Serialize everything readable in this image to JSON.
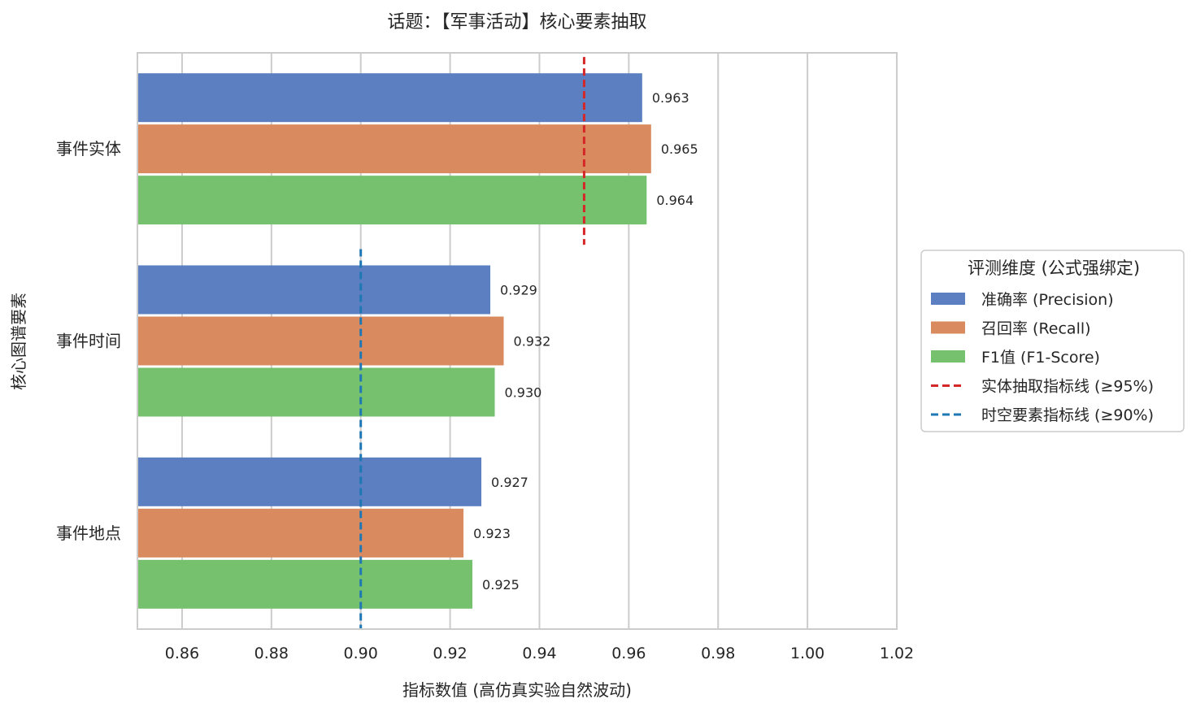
{
  "chart_data": {
    "type": "bar",
    "orientation": "horizontal",
    "title": "话题：【军事活动】核心要素抽取",
    "xlabel": "指标数值 (高仿真实验自然波动)",
    "ylabel": "核心图谱要素",
    "xlim": [
      0.85,
      1.02
    ],
    "xticks": [
      0.86,
      0.88,
      0.9,
      0.92,
      0.94,
      0.96,
      0.98,
      1.0,
      1.02
    ],
    "grid": true,
    "legend_position": "right",
    "categories": [
      "事件实体",
      "事件时间",
      "事件地点"
    ],
    "series": [
      {
        "name": "准确率 (Precision)",
        "color": "#5b7fc0",
        "values": [
          0.963,
          0.929,
          0.927
        ],
        "labels": [
          "0.963",
          "0.929",
          "0.927"
        ]
      },
      {
        "name": "召回率 (Recall)",
        "color": "#d98b5f",
        "values": [
          0.965,
          0.932,
          0.923
        ],
        "labels": [
          "0.965",
          "0.932",
          "0.923"
        ]
      },
      {
        "name": "F1值 (F1-Score)",
        "color": "#76c16e",
        "values": [
          0.964,
          0.93,
          0.925
        ],
        "labels": [
          "0.964",
          "0.930",
          "0.925"
        ]
      }
    ],
    "reference_lines": [
      {
        "name": "实体抽取指标线 (≥95%)",
        "value": 0.95,
        "color": "#d62728",
        "applies_to": [
          "事件实体"
        ]
      },
      {
        "name": "时空要素指标线 (≥90%)",
        "value": 0.9,
        "color": "#1f77b4",
        "applies_to": [
          "事件时间",
          "事件地点"
        ]
      }
    ],
    "legend_title": "评测维度 (公式强绑定)"
  }
}
